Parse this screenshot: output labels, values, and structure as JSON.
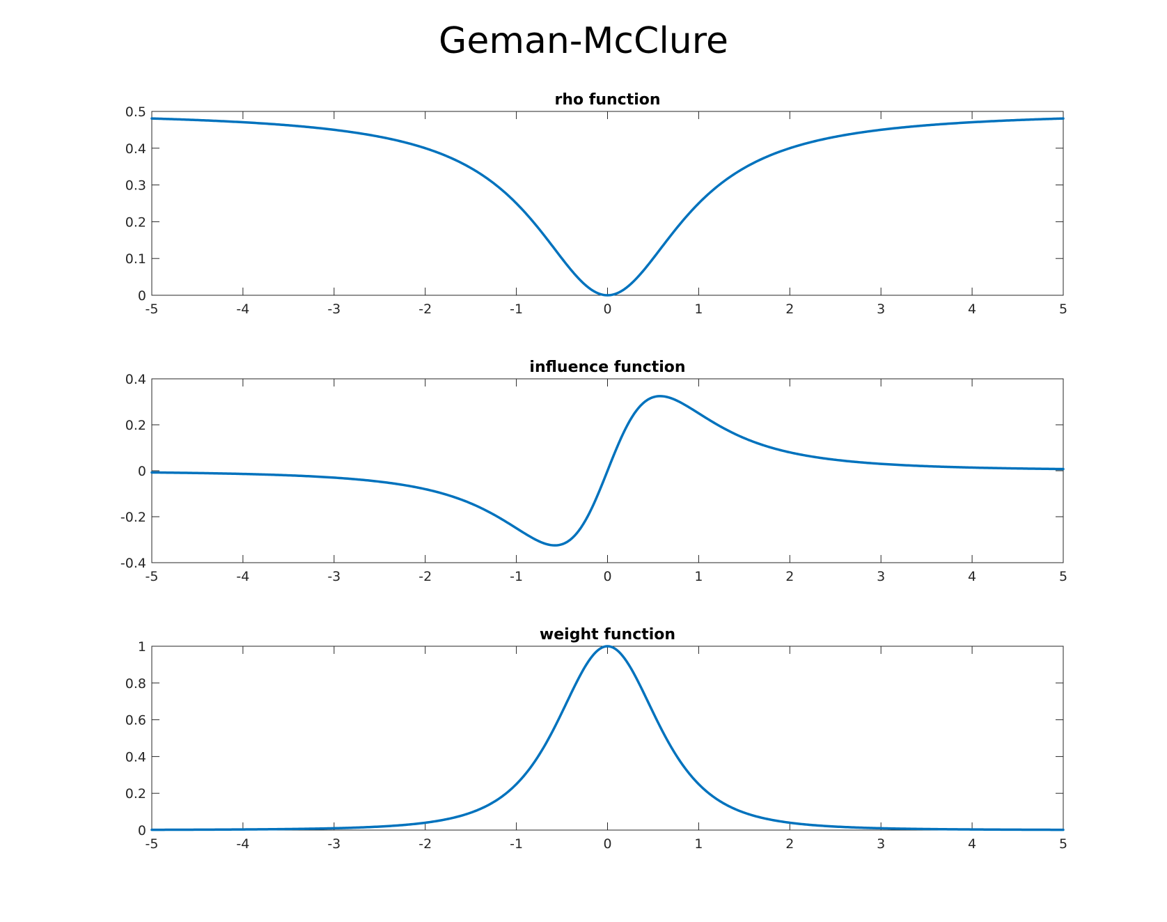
{
  "figure": {
    "title": "Geman-McClure",
    "line_color": "#0072BD"
  },
  "chart_data": [
    {
      "type": "line",
      "title": "rho function",
      "xlabel": "",
      "ylabel": "",
      "function": "rho",
      "xlim": [
        -5,
        5
      ],
      "ylim": [
        0,
        0.5
      ],
      "xticks": [
        -5,
        -4,
        -3,
        -2,
        -1,
        0,
        1,
        2,
        3,
        4,
        5
      ],
      "xtick_labels": [
        "-5",
        "-4",
        "-3",
        "-2",
        "-1",
        "0",
        "1",
        "2",
        "3",
        "4",
        "5"
      ],
      "yticks": [
        0,
        0.1,
        0.2,
        0.3,
        0.4,
        0.5
      ],
      "ytick_labels": [
        "0",
        "0.1",
        "0.2",
        "0.3",
        "0.4",
        "0.5"
      ],
      "grid": false,
      "x": [
        -5,
        -4,
        -3,
        -2,
        -1.5,
        -1,
        -0.75,
        -0.5,
        -0.25,
        0,
        0.25,
        0.5,
        0.75,
        1,
        1.5,
        2,
        3,
        4,
        5
      ],
      "y": [
        0.481,
        0.471,
        0.45,
        0.4,
        0.346,
        0.25,
        0.18,
        0.1,
        0.029,
        0,
        0.029,
        0.1,
        0.18,
        0.25,
        0.346,
        0.4,
        0.45,
        0.471,
        0.481
      ]
    },
    {
      "type": "line",
      "title": "influence function",
      "xlabel": "",
      "ylabel": "",
      "function": "influence",
      "xlim": [
        -5,
        5
      ],
      "ylim": [
        -0.4,
        0.4
      ],
      "xticks": [
        -5,
        -4,
        -3,
        -2,
        -1,
        0,
        1,
        2,
        3,
        4,
        5
      ],
      "xtick_labels": [
        "-5",
        "-4",
        "-3",
        "-2",
        "-1",
        "0",
        "1",
        "2",
        "3",
        "4",
        "5"
      ],
      "yticks": [
        -0.4,
        -0.2,
        0,
        0.2,
        0.4
      ],
      "ytick_labels": [
        "-0.4",
        "-0.2",
        "0",
        "0.2",
        "0.4"
      ],
      "grid": false,
      "x": [
        -5,
        -4,
        -3,
        -2,
        -1.5,
        -1,
        -0.75,
        -0.577,
        -0.5,
        -0.25,
        0,
        0.25,
        0.5,
        0.577,
        0.75,
        1,
        1.5,
        2,
        3,
        4,
        5
      ],
      "y": [
        -0.0074,
        -0.0144,
        -0.03,
        -0.08,
        -0.142,
        -0.25,
        -0.307,
        -0.325,
        -0.32,
        -0.221,
        0,
        0.221,
        0.32,
        0.325,
        0.307,
        0.25,
        0.142,
        0.08,
        0.03,
        0.0144,
        0.0074
      ]
    },
    {
      "type": "line",
      "title": "weight function",
      "xlabel": "",
      "ylabel": "",
      "function": "weight",
      "xlim": [
        -5,
        5
      ],
      "ylim": [
        0,
        1
      ],
      "xticks": [
        -5,
        -4,
        -3,
        -2,
        -1,
        0,
        1,
        2,
        3,
        4,
        5
      ],
      "xtick_labels": [
        "-5",
        "-4",
        "-3",
        "-2",
        "-1",
        "0",
        "1",
        "2",
        "3",
        "4",
        "5"
      ],
      "yticks": [
        0,
        0.2,
        0.4,
        0.6,
        0.8,
        1
      ],
      "ytick_labels": [
        "0",
        "0.2",
        "0.4",
        "0.6",
        "0.8",
        "1"
      ],
      "grid": false,
      "x": [
        -5,
        -4,
        -3,
        -2,
        -1.5,
        -1,
        -0.75,
        -0.5,
        -0.25,
        0,
        0.25,
        0.5,
        0.75,
        1,
        1.5,
        2,
        3,
        4,
        5
      ],
      "y": [
        0.0015,
        0.0036,
        0.01,
        0.04,
        0.095,
        0.25,
        0.41,
        0.64,
        0.885,
        1,
        0.885,
        0.64,
        0.41,
        0.25,
        0.095,
        0.04,
        0.01,
        0.0036,
        0.0015
      ]
    }
  ]
}
